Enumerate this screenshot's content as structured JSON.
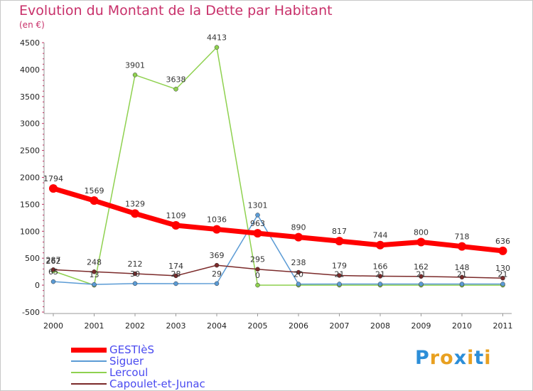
{
  "title": "Evolution du Montant de la Dette par Habitant",
  "subtitle": "(en €)",
  "brand": {
    "letters": [
      "P",
      "r",
      "o",
      "x",
      "i",
      "t",
      "i"
    ],
    "colors": [
      "#2c8ed8",
      "#e8a020",
      "#e8a020",
      "#2c8ed8",
      "#e8a020",
      "#2c8ed8",
      "#e8a020"
    ]
  },
  "chart_data": {
    "type": "line",
    "title": "Evolution du Montant de la Dette par Habitant",
    "ylabel": "(en €)",
    "ylim": [
      -500,
      4500
    ],
    "yticks": [
      -500,
      0,
      500,
      1000,
      1500,
      2000,
      2500,
      3000,
      3500,
      4000,
      4500
    ],
    "categories": [
      "2000",
      "2001",
      "2002",
      "2003",
      "2004",
      "2005",
      "2006",
      "2007",
      "2008",
      "2009",
      "2010",
      "2011"
    ],
    "series": [
      {
        "name": "Lercoul",
        "color": "#8fd14f",
        "values": [
          262,
          0,
          3901,
          3638,
          4413,
          0,
          0,
          0,
          0,
          0,
          0,
          0
        ],
        "labels": [
          "262",
          "",
          "3901",
          "3638",
          "4413",
          "0",
          "",
          "",
          "",
          "",
          "",
          ""
        ]
      },
      {
        "name": "Siguer",
        "color": "#5b9bd5",
        "values": [
          65,
          13,
          30,
          28,
          29,
          1301,
          20,
          21,
          21,
          21,
          21,
          21
        ],
        "labels": [
          "65",
          "13",
          "30",
          "28",
          "29",
          "1301",
          "20",
          "21",
          "21",
          "21",
          "21",
          "21"
        ]
      },
      {
        "name": "Capoulet-et-Junac",
        "color": "#7b2a2a",
        "values": [
          287,
          248,
          212,
          174,
          369,
          295,
          238,
          179,
          166,
          162,
          148,
          130
        ],
        "labels": [
          "287",
          "248",
          "212",
          "174",
          "369",
          "295",
          "238",
          "179",
          "166",
          "162",
          "148",
          "130"
        ]
      },
      {
        "name": "GESTIèS",
        "color": "#ff0000",
        "values": [
          1794,
          1569,
          1329,
          1109,
          1036,
          963,
          890,
          817,
          744,
          800,
          718,
          636
        ],
        "labels": [
          "1794",
          "1569",
          "1329",
          "1109",
          "1036",
          "963",
          "890",
          "817",
          "744",
          "800",
          "718",
          "636"
        ]
      }
    ],
    "legend": [
      "GESTIèS",
      "Siguer",
      "Lercoul",
      "Capoulet-et-Junac"
    ],
    "legend_position": "bottom-left",
    "grid": false
  }
}
